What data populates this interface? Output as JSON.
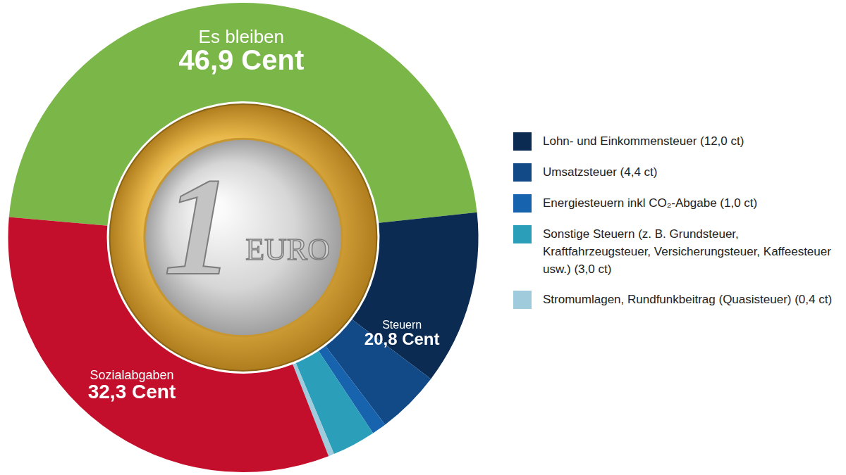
{
  "chart_data": {
    "type": "doughnut",
    "categories": [
      "Es bleiben",
      "Lohn- und Einkommensteuer (12,0 ct)",
      "Umsatzsteuer (4,4 ct)",
      "Energiesteuern inkl CO₂-Abgabe (1,0 ct)",
      "Sonstige Steuern (z. B. Grundsteuer, Kraftfahrzeugsteuer, Versicherungsteuer, Kaffeesteuer usw.) (3,0 ct)",
      "Stromumlagen, Rundfunkbeitrag (Quasisteuer) (0,4 ct)",
      "Sozialabgaben"
    ],
    "values": [
      46.9,
      12.0,
      4.4,
      1.0,
      3.0,
      0.4,
      32.3
    ],
    "colors": [
      "#7ab648",
      "#0c2b52",
      "#114a86",
      "#1763ad",
      "#2b9fb9",
      "#9fcbdc",
      "#c30f2b"
    ],
    "groups": [
      {
        "name": "Es bleiben",
        "value": 46.9,
        "label": "46,9 Cent",
        "categories": [
          "Es bleiben"
        ]
      },
      {
        "name": "Steuern",
        "value": 20.8,
        "label": "20,8 Cent",
        "categories": [
          "Lohn- und Einkommensteuer (12,0 ct)",
          "Umsatzsteuer (4,4 ct)",
          "Energiesteuern inkl CO₂-Abgabe (1,0 ct)",
          "Sonstige Steuern (z. B. Grundsteuer, Kraftfahrzeugsteuer, Versicherungsteuer, Kaffeesteuer usw.) (3,0 ct)",
          "Stromumlagen, Rundfunkbeitrag (Quasisteuer) (0,4 ct)"
        ]
      },
      {
        "name": "Sozialabgaben",
        "value": 32.3,
        "label": "32,3 Cent",
        "categories": [
          "Sozialabgaben"
        ]
      }
    ],
    "coin": [
      "1",
      "EURO"
    ],
    "legend": "right"
  }
}
